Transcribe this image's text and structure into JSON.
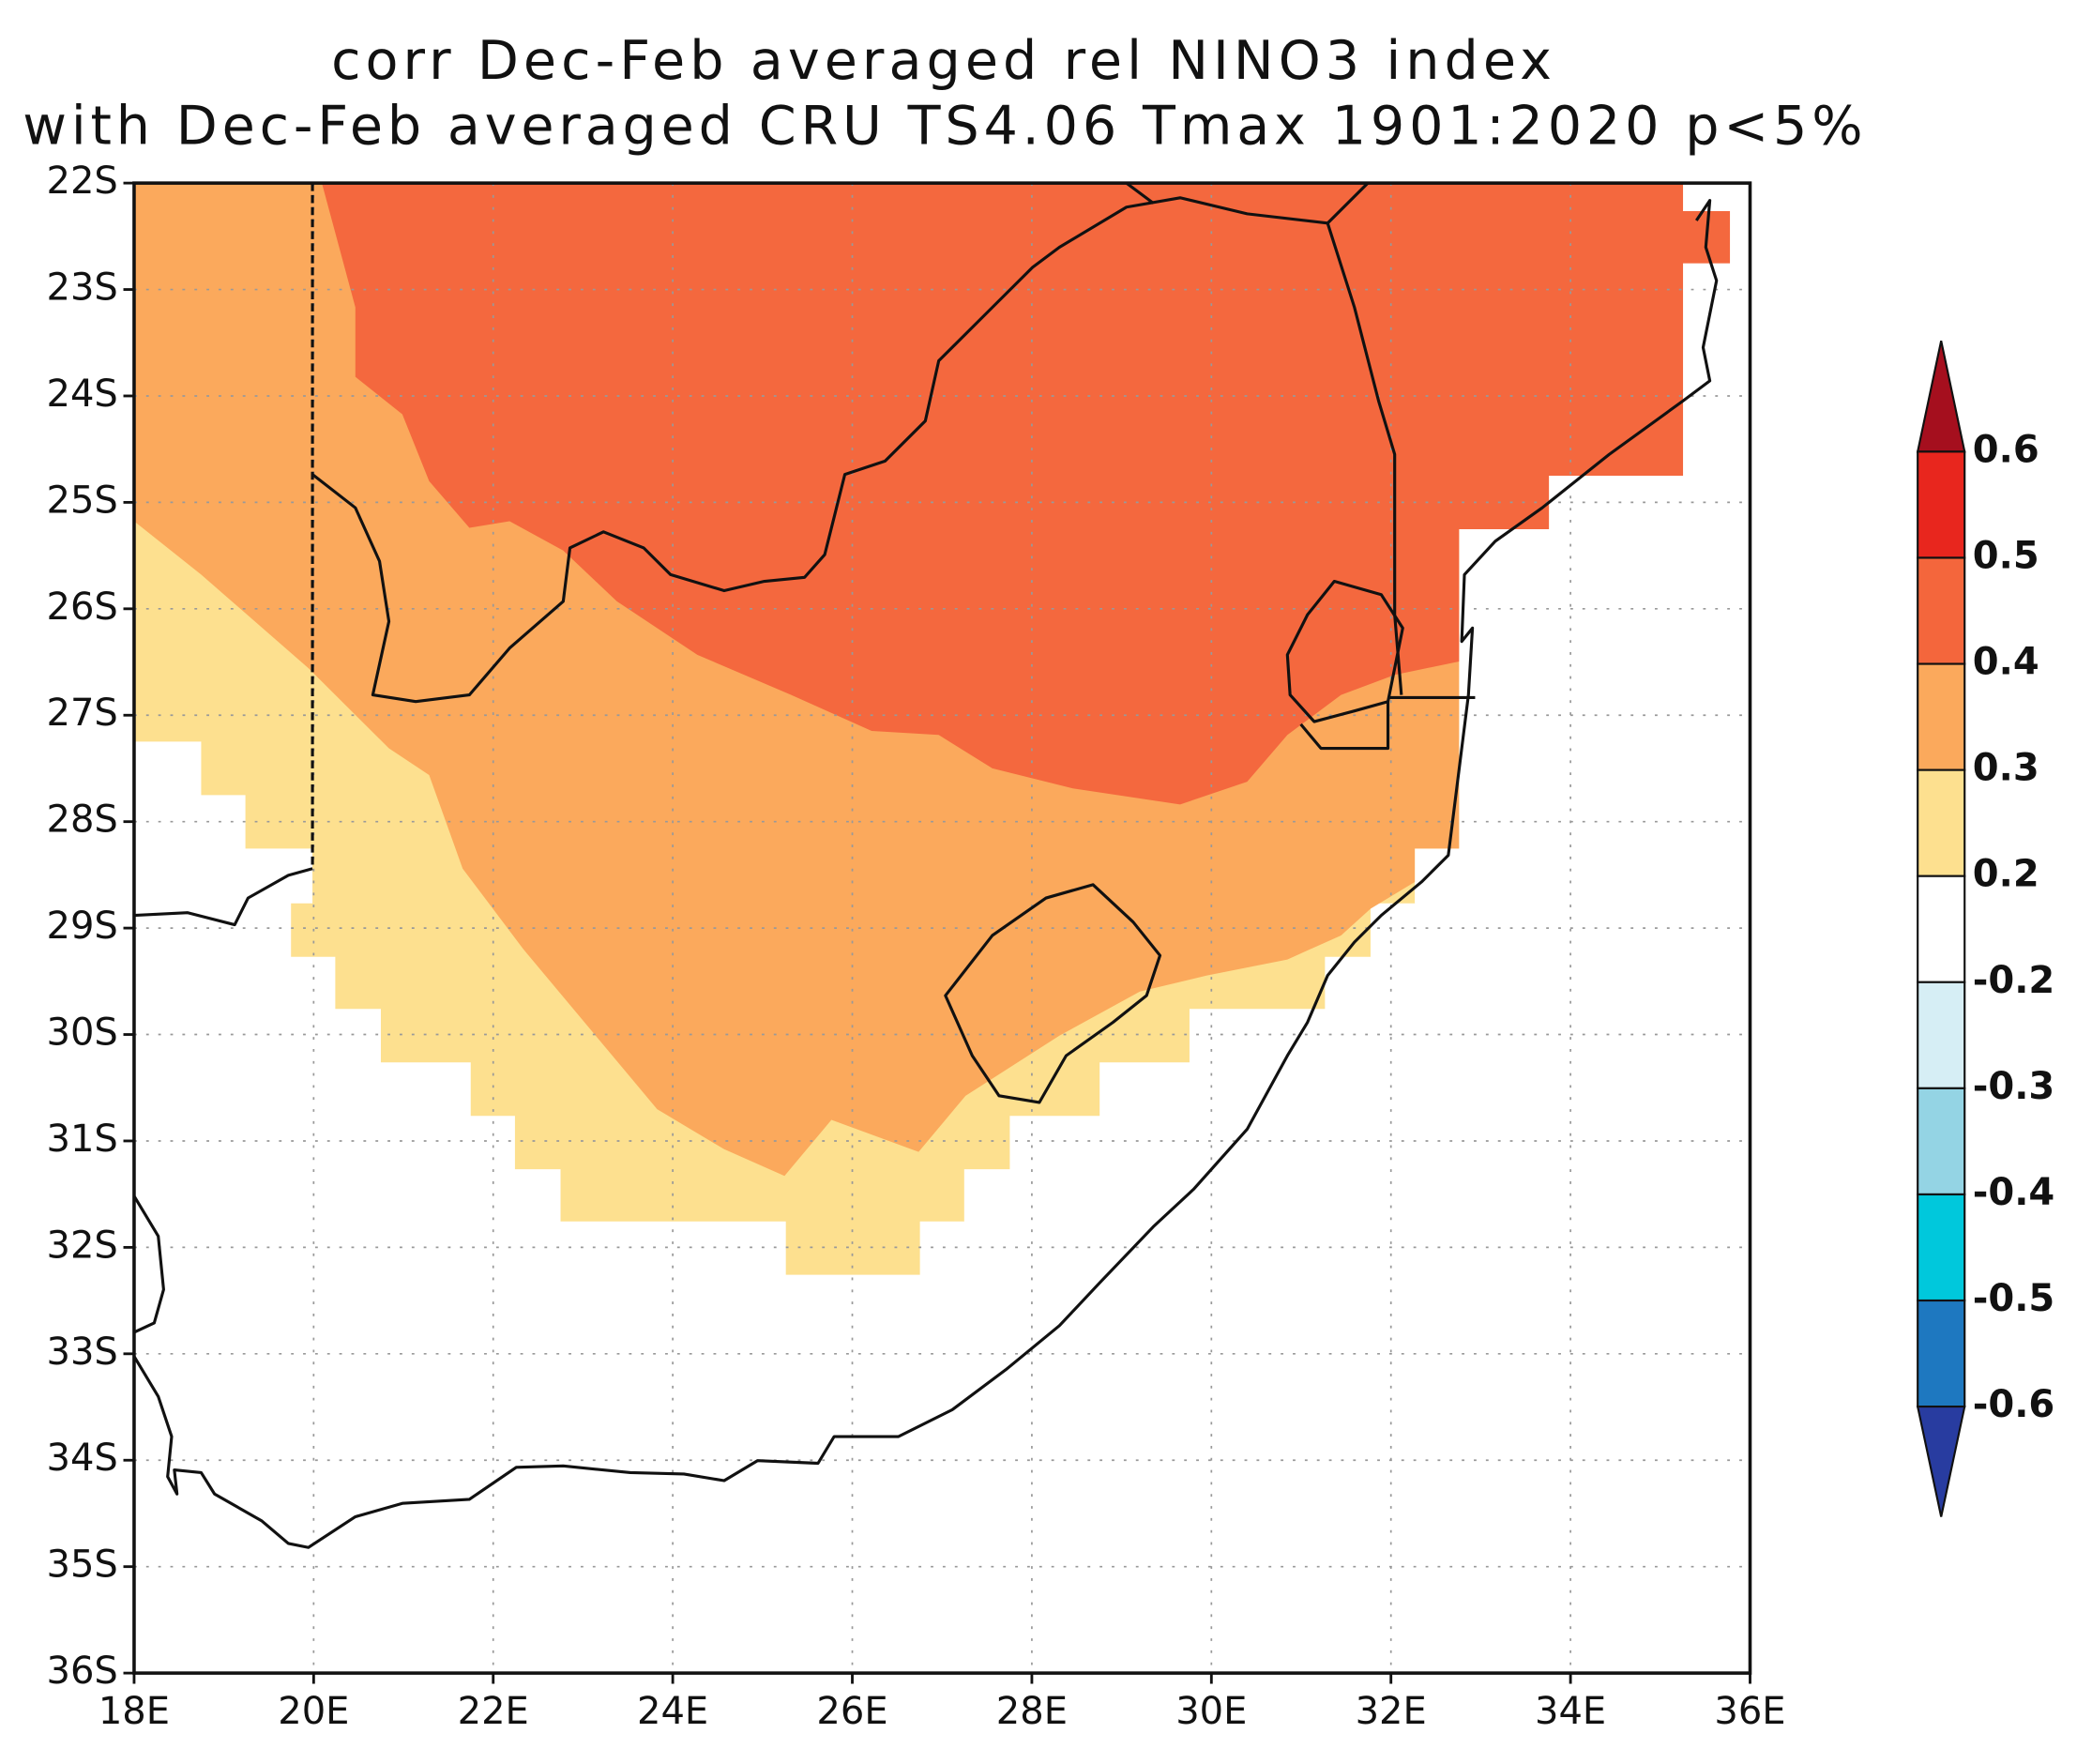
{
  "chart_data": {
    "type": "map",
    "title": [
      "corr Dec-Feb averaged rel NINO3 index",
      "with Dec-Feb averaged CRU TS4.06 Tmax 1901:2020 p<5%"
    ],
    "xlim": [
      18,
      36
    ],
    "ylim": [
      -36,
      -22
    ],
    "xticks": [
      {
        "value": 18,
        "label": "18E"
      },
      {
        "value": 20,
        "label": "20E"
      },
      {
        "value": 22,
        "label": "22E"
      },
      {
        "value": 24,
        "label": "24E"
      },
      {
        "value": 26,
        "label": "26E"
      },
      {
        "value": 28,
        "label": "28E"
      },
      {
        "value": 30,
        "label": "30E"
      },
      {
        "value": 32,
        "label": "32E"
      },
      {
        "value": 34,
        "label": "34E"
      },
      {
        "value": 36,
        "label": "36E"
      }
    ],
    "yticks": [
      {
        "value": -22,
        "label": "22S"
      },
      {
        "value": -23,
        "label": "23S"
      },
      {
        "value": -24,
        "label": "24S"
      },
      {
        "value": -25,
        "label": "25S"
      },
      {
        "value": -26,
        "label": "26S"
      },
      {
        "value": -27,
        "label": "27S"
      },
      {
        "value": -28,
        "label": "28S"
      },
      {
        "value": -29,
        "label": "29S"
      },
      {
        "value": -30,
        "label": "30S"
      },
      {
        "value": -31,
        "label": "31S"
      },
      {
        "value": -32,
        "label": "32S"
      },
      {
        "value": -33,
        "label": "33S"
      },
      {
        "value": -34,
        "label": "34S"
      },
      {
        "value": -35,
        "label": "35S"
      },
      {
        "value": -36,
        "label": "36S"
      }
    ],
    "grid": true,
    "colorbar": {
      "levels": [
        0.6,
        0.5,
        0.4,
        0.3,
        0.2,
        -0.2,
        -0.3,
        -0.4,
        -0.5,
        -0.6
      ],
      "colors": [
        "#a50f1e",
        "#e8261e",
        "#f4663c",
        "#fba95c",
        "#fde08f",
        "#ffffff",
        "#d6eef5",
        "#94d4e4",
        "#00c8dc",
        "#1e78c0",
        "#283ca0"
      ]
    }
  }
}
